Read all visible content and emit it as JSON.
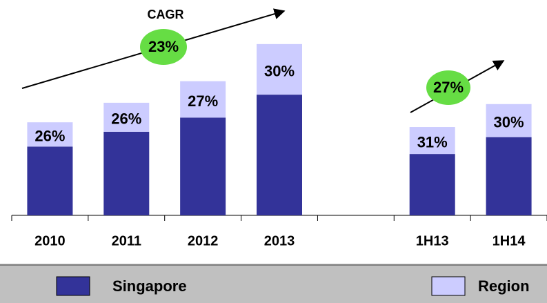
{
  "chart_data": {
    "type": "bar",
    "stacked": true,
    "categories": [
      "2010",
      "2011",
      "2012",
      "2013",
      null,
      "1H13",
      "1H14"
    ],
    "series": [
      {
        "name": "Singapore",
        "color": "#333399",
        "values": [
          102,
          124,
          145,
          179,
          null,
          91,
          116
        ]
      },
      {
        "name": "Region",
        "color": "#ccccff",
        "values": [
          36,
          43,
          54,
          75,
          null,
          40,
          49
        ],
        "value_labels": [
          "26%",
          "26%",
          "27%",
          "30%",
          null,
          "31%",
          "30%"
        ]
      }
    ],
    "ylim": [
      0,
      260
    ],
    "annotations": {
      "cagr_title": "CAGR",
      "cagr_full": "23%",
      "cagr_half": "27%"
    }
  }
}
